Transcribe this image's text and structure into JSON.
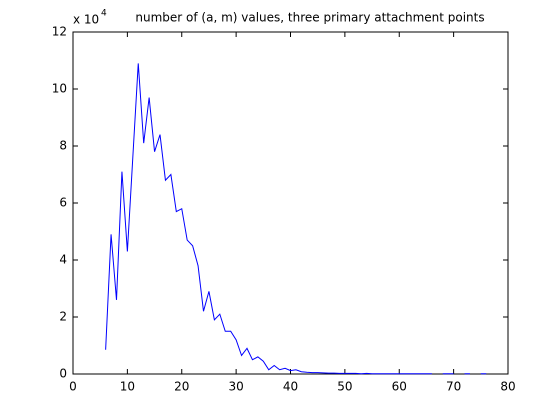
{
  "chart_data": {
    "type": "line",
    "title": "number of (a, m) values, three primary attachment points",
    "y_multiplier": {
      "base": "x 10",
      "exponent": "4"
    },
    "x": [
      6,
      7,
      8,
      9,
      10,
      11,
      12,
      13,
      14,
      15,
      16,
      17,
      18,
      19,
      20,
      21,
      22,
      23,
      24,
      25,
      26,
      27,
      28,
      29,
      30,
      31,
      32,
      33,
      34,
      35,
      36,
      37,
      38,
      39,
      40,
      41,
      42,
      43,
      44,
      45,
      46,
      47,
      48,
      49,
      50,
      51,
      52,
      53,
      54,
      55,
      56,
      57,
      58,
      59,
      60,
      61,
      62,
      63,
      64,
      65,
      66,
      67,
      68,
      69,
      70,
      71,
      72,
      73,
      74,
      75,
      76
    ],
    "values": [
      0.85,
      4.9,
      2.6,
      7.1,
      4.3,
      7.6,
      10.9,
      8.1,
      9.7,
      7.8,
      8.4,
      6.8,
      7.0,
      5.7,
      5.8,
      4.7,
      4.5,
      3.8,
      2.2,
      2.9,
      1.9,
      2.1,
      1.5,
      1.5,
      1.2,
      0.65,
      0.9,
      0.5,
      0.6,
      0.45,
      0.15,
      0.3,
      0.15,
      0.2,
      0.12,
      0.15,
      0.08,
      0.06,
      0.05,
      0.05,
      0.04,
      0.03,
      0.03,
      0.02,
      0.02,
      0.02,
      0.02,
      0.01,
      0.02,
      0.01,
      0.01,
      0.01,
      0.01,
      0.01,
      0.01,
      0.01,
      0.01,
      0.01,
      0.01,
      0.01,
      0.01,
      null,
      0.01,
      0.01,
      0.01,
      null,
      0.01,
      0.01,
      null,
      0.01,
      0.01
    ],
    "color": "#0000ff",
    "xlim": [
      0,
      80
    ],
    "xticks": [
      0,
      10,
      20,
      30,
      40,
      50,
      60,
      70,
      80
    ],
    "ylim": [
      0,
      12
    ],
    "yticks": [
      0,
      2,
      4,
      6,
      8,
      10,
      12
    ],
    "grid": false
  }
}
